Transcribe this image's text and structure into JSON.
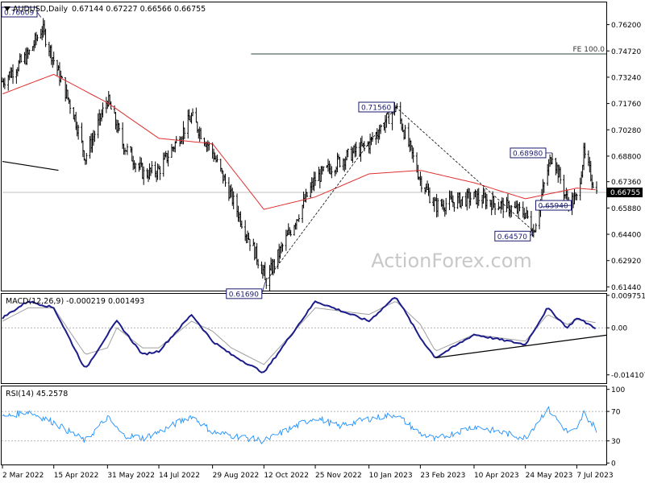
{
  "chart_data": [
    {
      "type": "ohlc",
      "title": "AUDUSD,Daily",
      "ohlc_readout": "0.67144 0.67227 0.66566 0.66755",
      "current_price": "0.66755",
      "ylim": [
        0.6123,
        0.7745
      ],
      "y_ticks": [
        "0.76200",
        "0.74720",
        "0.73240",
        "0.71760",
        "0.70280",
        "0.68800",
        "0.67360",
        "0.65880",
        "0.64400",
        "0.62920",
        "0.61440"
      ],
      "x_ticks": [
        "2 Mar 2022",
        "15 Apr 2022",
        "31 May 2022",
        "14 Jul 2022",
        "29 Aug 2022",
        "12 Oct 2022",
        "25 Nov 2022",
        "10 Jan 2023",
        "23 Feb 2023",
        "10 Apr 2023",
        "24 May 2023",
        "7 Jul 2023"
      ],
      "price_path": [
        {
          "date": "2 Mar 2022",
          "close": 0.73
        },
        {
          "date": "24 Mar 2022",
          "close": 0.745
        },
        {
          "date": "5 Apr 2022",
          "close": 0.76
        },
        {
          "date": "15 Apr 2022",
          "close": 0.742
        },
        {
          "date": "3 May 2022",
          "close": 0.71
        },
        {
          "date": "12 May 2022",
          "close": 0.687
        },
        {
          "date": "31 May 2022",
          "close": 0.72
        },
        {
          "date": "13 Jun 2022",
          "close": 0.695
        },
        {
          "date": "1 Jul 2022",
          "close": 0.678
        },
        {
          "date": "14 Jul 2022",
          "close": 0.68
        },
        {
          "date": "11 Aug 2022",
          "close": 0.71
        },
        {
          "date": "29 Aug 2022",
          "close": 0.69
        },
        {
          "date": "12 Oct 2022",
          "close": 0.622
        },
        {
          "date": "13 Oct 2022",
          "close": 0.6169
        },
        {
          "date": "25 Nov 2022",
          "close": 0.675
        },
        {
          "date": "15 Dec 2022",
          "close": 0.685
        },
        {
          "date": "10 Jan 2023",
          "close": 0.695
        },
        {
          "date": "2 Feb 2023",
          "close": 0.7156
        },
        {
          "date": "23 Feb 2023",
          "close": 0.675
        },
        {
          "date": "8 Mar 2023",
          "close": 0.66
        },
        {
          "date": "10 Apr 2023",
          "close": 0.665
        },
        {
          "date": "24 May 2023",
          "close": 0.656
        },
        {
          "date": "31 May 2023",
          "close": 0.6457
        },
        {
          "date": "12 Jun 2023",
          "close": 0.68
        },
        {
          "date": "16 Jun 2023",
          "close": 0.6898
        },
        {
          "date": "29 Jun 2023",
          "close": 0.662
        },
        {
          "date": "7 Jul 2023",
          "close": 0.664
        },
        {
          "date": "13 Jul 2023",
          "close": 0.689
        },
        {
          "date": "last",
          "close": 0.66755
        }
      ],
      "series": [
        {
          "name": "MA",
          "color": "#e03030",
          "points": [
            {
              "date": "2 Mar 2022",
              "value": 0.723
            },
            {
              "date": "15 Apr 2022",
              "value": 0.734
            },
            {
              "date": "31 May 2022",
              "value": 0.718
            },
            {
              "date": "14 Jul 2022",
              "value": 0.698
            },
            {
              "date": "29 Aug 2022",
              "value": 0.695
            },
            {
              "date": "12 Oct 2022",
              "value": 0.658
            },
            {
              "date": "25 Nov 2022",
              "value": 0.665
            },
            {
              "date": "10 Jan 2023",
              "value": 0.678
            },
            {
              "date": "23 Feb 2023",
              "value": 0.68
            },
            {
              "date": "10 Apr 2023",
              "value": 0.673
            },
            {
              "date": "24 May 2023",
              "value": 0.664
            },
            {
              "date": "7 Jul 2023",
              "value": 0.67
            },
            {
              "date": "last",
              "value": 0.669
            }
          ]
        }
      ],
      "horizontal_lines": [
        {
          "label": "FE 100.0",
          "value": 0.7455,
          "from": "1 Oct 2022",
          "to": "last"
        },
        {
          "value": 0.66755,
          "from": "2 Mar 2022",
          "to": "last",
          "color": "#c0c0c0"
        }
      ],
      "trendlines": [
        {
          "from": {
            "date": "2 Mar 2022",
            "value": 0.685
          },
          "to": {
            "date": "19 Apr 2022",
            "value": 0.68
          },
          "style": "solid"
        },
        {
          "from": {
            "date": "13 Oct 2022",
            "value": 0.6169
          },
          "to": {
            "date": "2 Feb 2023",
            "value": 0.7156
          },
          "style": "dashed"
        },
        {
          "from": {
            "date": "2 Feb 2023",
            "value": 0.7156
          },
          "to": {
            "date": "31 May 2023",
            "value": 0.6457
          },
          "style": "dashed"
        }
      ],
      "annotations": [
        {
          "text": "0.76609",
          "date": "4 Apr 2022",
          "value": 0.7661
        },
        {
          "text": "0.71560",
          "date": "2 Feb 2023",
          "value": 0.7156
        },
        {
          "text": "0.61690",
          "date": "13 Oct 2022",
          "value": 0.6169
        },
        {
          "text": "0.68980",
          "date": "16 Jun 2023",
          "value": 0.6898
        },
        {
          "text": "0.65940",
          "date": "6 Jun 2023",
          "value": 0.6594
        },
        {
          "text": "0.64570",
          "date": "31 May 2023",
          "value": 0.6457
        }
      ],
      "watermark": "ActionForex.com"
    },
    {
      "type": "line",
      "title": "MACD(12,26,9) -0.000219 0.001493",
      "ylim": [
        -0.0166,
        0.0102
      ],
      "y_ticks": [
        "0.009751",
        "0.00",
        "-0.014107"
      ],
      "series": [
        {
          "name": "MACD",
          "color": "#1c1c8a",
          "points": [
            {
              "date": "2 Mar 2022",
              "value": 0.003
            },
            {
              "date": "24 Mar 2022",
              "value": 0.008
            },
            {
              "date": "15 Apr 2022",
              "value": 0.006
            },
            {
              "date": "12 May 2022",
              "value": -0.0125
            },
            {
              "date": "31 May 2022",
              "value": -0.002
            },
            {
              "date": "8 Jun 2022",
              "value": 0.002
            },
            {
              "date": "30 Jun 2022",
              "value": -0.008
            },
            {
              "date": "14 Jul 2022",
              "value": -0.007
            },
            {
              "date": "11 Aug 2022",
              "value": 0.004
            },
            {
              "date": "29 Aug 2022",
              "value": -0.004
            },
            {
              "date": "14 Sep 2022",
              "value": -0.008
            },
            {
              "date": "12 Oct 2022",
              "value": -0.0135
            },
            {
              "date": "25 Nov 2022",
              "value": 0.008
            },
            {
              "date": "10 Jan 2023",
              "value": 0.002
            },
            {
              "date": "2 Feb 2023",
              "value": 0.0095
            },
            {
              "date": "23 Feb 2023",
              "value": -0.003
            },
            {
              "date": "8 Mar 2023",
              "value": -0.009
            },
            {
              "date": "10 Apr 2023",
              "value": -0.002
            },
            {
              "date": "24 May 2023",
              "value": -0.005
            },
            {
              "date": "12 Jun 2023",
              "value": 0.006
            },
            {
              "date": "29 Jun 2023",
              "value": 0.0
            },
            {
              "date": "7 Jul 2023",
              "value": 0.003
            },
            {
              "date": "last",
              "value": -0.0002
            }
          ]
        },
        {
          "name": "Signal",
          "color": "#a0a0a0",
          "points": [
            {
              "date": "2 Mar 2022",
              "value": 0.002
            },
            {
              "date": "24 Mar 2022",
              "value": 0.006
            },
            {
              "date": "15 Apr 2022",
              "value": 0.006
            },
            {
              "date": "12 May 2022",
              "value": -0.008
            },
            {
              "date": "31 May 2022",
              "value": -0.006
            },
            {
              "date": "8 Jun 2022",
              "value": 0.0
            },
            {
              "date": "30 Jun 2022",
              "value": -0.006
            },
            {
              "date": "14 Jul 2022",
              "value": -0.006
            },
            {
              "date": "11 Aug 2022",
              "value": 0.002
            },
            {
              "date": "29 Aug 2022",
              "value": -0.001
            },
            {
              "date": "14 Sep 2022",
              "value": -0.006
            },
            {
              "date": "12 Oct 2022",
              "value": -0.011
            },
            {
              "date": "25 Nov 2022",
              "value": 0.006
            },
            {
              "date": "10 Jan 2023",
              "value": 0.004
            },
            {
              "date": "2 Feb 2023",
              "value": 0.008
            },
            {
              "date": "23 Feb 2023",
              "value": 0.001
            },
            {
              "date": "8 Mar 2023",
              "value": -0.007
            },
            {
              "date": "10 Apr 2023",
              "value": -0.002
            },
            {
              "date": "24 May 2023",
              "value": -0.004
            },
            {
              "date": "12 Jun 2023",
              "value": 0.004
            },
            {
              "date": "29 Jun 2023",
              "value": 0.001
            },
            {
              "date": "7 Jul 2023",
              "value": 0.0025
            },
            {
              "date": "last",
              "value": 0.0015
            }
          ]
        }
      ],
      "zero_line": true,
      "trendlines": [
        {
          "from": {
            "date": "8 Mar 2023",
            "value": -0.009
          },
          "to": {
            "date": "last",
            "value": -0.0022
          },
          "style": "solid"
        }
      ]
    },
    {
      "type": "line",
      "title": "RSI(14) 45.2578",
      "ylim": [
        -2,
        104
      ],
      "y_ticks": [
        "100",
        "70",
        "30",
        "0"
      ],
      "levels": [
        70,
        30
      ],
      "series": [
        {
          "name": "RSI",
          "color": "#1e90ff",
          "points": [
            {
              "date": "2 Mar 2022",
              "value": 62
            },
            {
              "date": "24 Mar 2022",
              "value": 70
            },
            {
              "date": "15 Apr 2022",
              "value": 55
            },
            {
              "date": "12 May 2022",
              "value": 30
            },
            {
              "date": "31 May 2022",
              "value": 62
            },
            {
              "date": "13 Jun 2022",
              "value": 38
            },
            {
              "date": "1 Jul 2022",
              "value": 34
            },
            {
              "date": "14 Jul 2022",
              "value": 42
            },
            {
              "date": "11 Aug 2022",
              "value": 64
            },
            {
              "date": "29 Aug 2022",
              "value": 42
            },
            {
              "date": "12 Oct 2022",
              "value": 30
            },
            {
              "date": "25 Nov 2022",
              "value": 62
            },
            {
              "date": "15 Dec 2022",
              "value": 50
            },
            {
              "date": "10 Jan 2023",
              "value": 60
            },
            {
              "date": "2 Feb 2023",
              "value": 66
            },
            {
              "date": "23 Feb 2023",
              "value": 40
            },
            {
              "date": "8 Mar 2023",
              "value": 32
            },
            {
              "date": "10 Apr 2023",
              "value": 50
            },
            {
              "date": "24 May 2023",
              "value": 34
            },
            {
              "date": "12 Jun 2023",
              "value": 74
            },
            {
              "date": "29 Jun 2023",
              "value": 42
            },
            {
              "date": "7 Jul 2023",
              "value": 44
            },
            {
              "date": "13 Jul 2023",
              "value": 68
            },
            {
              "date": "last",
              "value": 45.2578
            }
          ]
        }
      ]
    }
  ]
}
